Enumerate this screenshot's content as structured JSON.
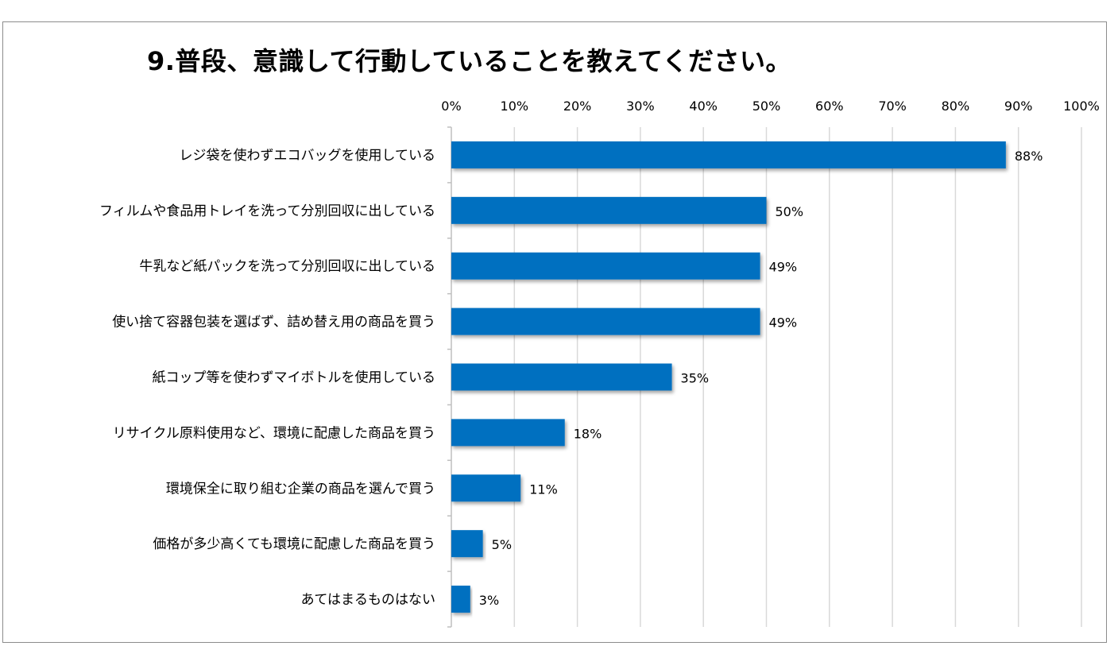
{
  "chart_data": {
    "type": "bar",
    "orientation": "horizontal",
    "title": "9.普段、意識して行動していることを教えてください。",
    "categories": [
      "レジ袋を使わずエコバッグを使用している",
      "フィルムや食品用トレイを洗って分別回収に出している",
      "牛乳など紙パックを洗って分別回収に出している",
      "使い捨て容器包装を選ばず、詰め替え用の商品を買う",
      "紙コップ等を使わずマイボトルを使用している",
      "リサイクル原料使用など、環境に配慮した商品を買う",
      "環境保全に取り組む企業の商品を選んで買う",
      "価格が多少高くても環境に配慮した商品を買う",
      "あてはまるものはない"
    ],
    "values": [
      88,
      50,
      49,
      49,
      35,
      18,
      11,
      5,
      3
    ],
    "data_labels": [
      "88%",
      "50%",
      "49%",
      "49%",
      "35%",
      "18%",
      "11%",
      "5%",
      "3%"
    ],
    "x_ticks": [
      "0%",
      "10%",
      "20%",
      "30%",
      "40%",
      "50%",
      "60%",
      "70%",
      "80%",
      "90%",
      "100%"
    ],
    "xlim": [
      0,
      100
    ],
    "axis_position": "top",
    "grid": true,
    "bar_color": "#0070c0",
    "xlabel": "",
    "ylabel": ""
  }
}
